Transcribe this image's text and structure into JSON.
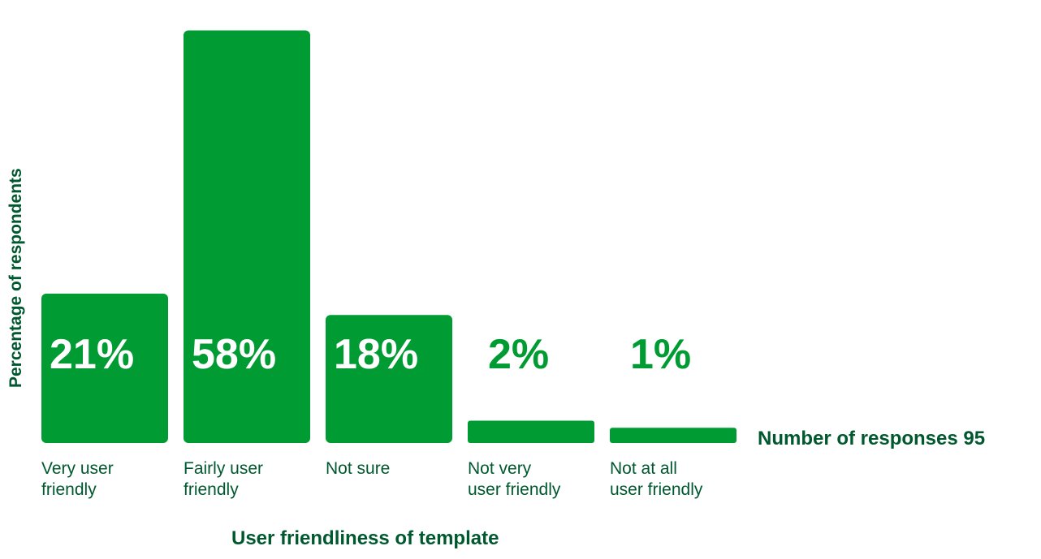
{
  "colors": {
    "bar": "#009c33",
    "text": "#00582f",
    "value_inside": "#ffffff"
  },
  "chart_data": {
    "type": "bar",
    "categories": [
      "Very user\nfriendly",
      "Fairly user\nfriendly",
      "Not sure",
      "Not very\nuser friendly",
      "Not at all\nuser friendly"
    ],
    "values": [
      21,
      58,
      18,
      2,
      1
    ],
    "value_labels": [
      "21%",
      "58%",
      "18%",
      "2%",
      "1%"
    ],
    "ylabel": "Percentage of respondents",
    "xlabel": "User friendliness of template",
    "ylim": [
      0,
      60
    ],
    "grid": false,
    "legend": "none",
    "responses_label": "Number of responses 95"
  }
}
